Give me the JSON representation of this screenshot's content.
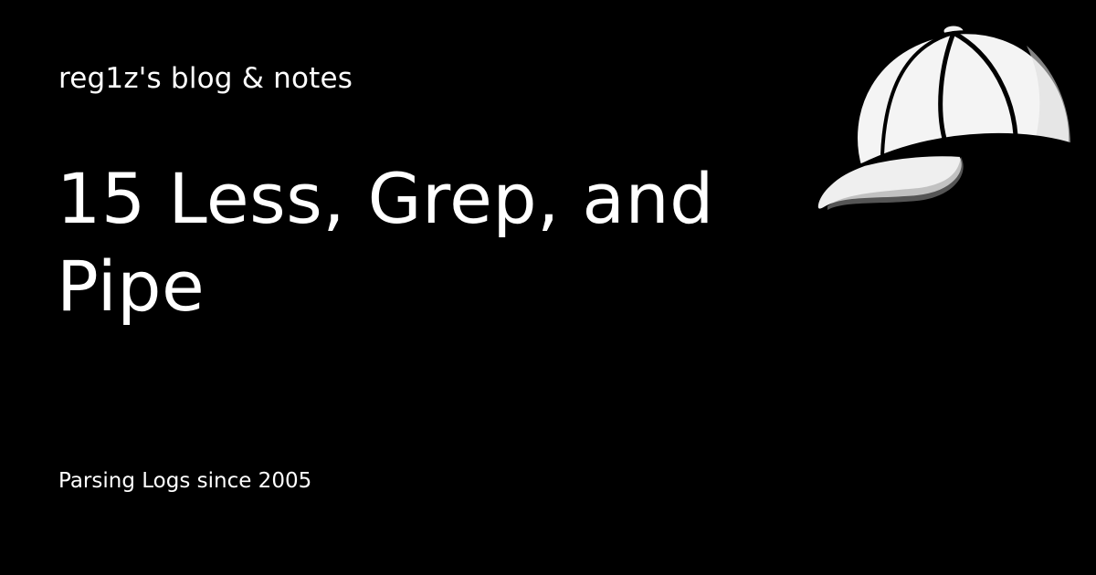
{
  "site": {
    "name": "reg1z's blog & notes"
  },
  "post": {
    "title": "15 Less, Grep, and Pipe"
  },
  "tagline": "Parsing Logs since 2005",
  "logo": {
    "icon": "baseball-cap-icon"
  },
  "colors": {
    "background": "#000000",
    "text": "#ffffff"
  }
}
